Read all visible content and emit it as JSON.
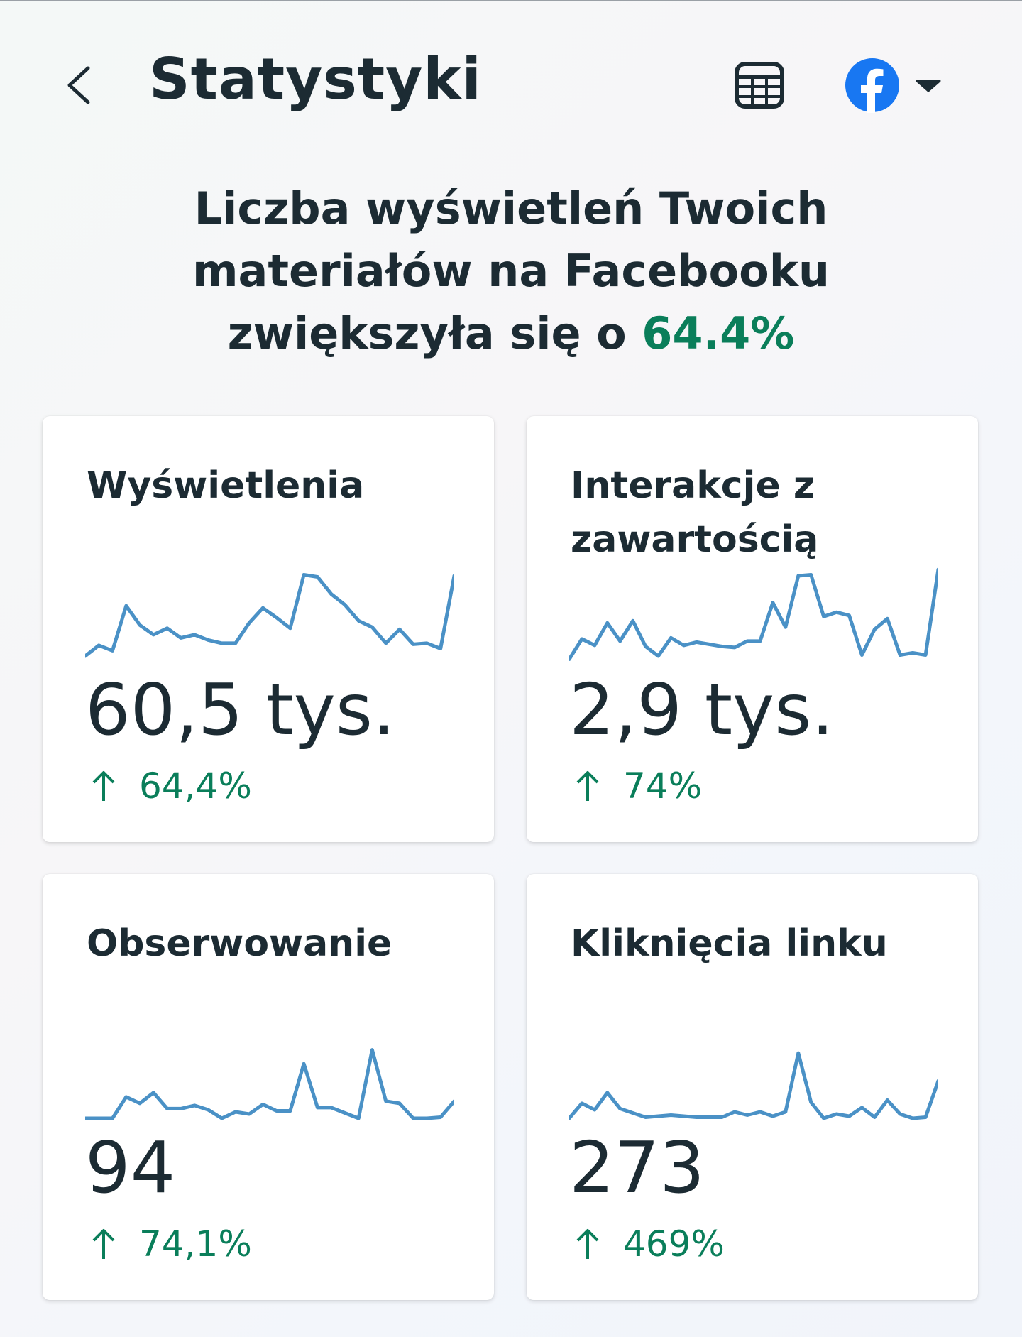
{
  "header": {
    "title": "Statystyki",
    "back_icon": "chevron-left-icon",
    "export_icon": "spreadsheet-icon",
    "platform_icon": "facebook-icon",
    "dropdown_icon": "caret-down-icon"
  },
  "headline": {
    "text": "Liczba wyświetleń Twoich materiałów na Facebooku zwiększyła się o ",
    "percent": "64.4%"
  },
  "colors": {
    "accent_green": "#0a7e5a",
    "sparkline_blue": "#4a91c6",
    "facebook_blue": "#1877f2",
    "text_dark": "#1c2b33"
  },
  "metrics": [
    {
      "label": "Wyświetlenia",
      "value": "60,5 tys.",
      "change": "64,4%",
      "trend": [
        8,
        28,
        18,
        102,
        66,
        48,
        60,
        42,
        48,
        38,
        32,
        32,
        70,
        98,
        80,
        60,
        160,
        156,
        124,
        104,
        74,
        62,
        32,
        58,
        30,
        32,
        22,
        158
      ]
    },
    {
      "label": "Interakcje z zawartością",
      "value": "2,9 tys.",
      "change": "74%",
      "trend": [
        2,
        40,
        28,
        70,
        36,
        74,
        26,
        8,
        42,
        28,
        34,
        30,
        26,
        24,
        36,
        36,
        108,
        62,
        158,
        160,
        82,
        90,
        84,
        10,
        58,
        78,
        10,
        14,
        10,
        170
      ]
    },
    {
      "label": "Obserwowanie",
      "value": "94",
      "change": "74,1%",
      "trend": [
        0,
        0,
        0,
        40,
        28,
        48,
        18,
        18,
        24,
        16,
        0,
        12,
        8,
        26,
        14,
        14,
        102,
        20,
        20,
        10,
        0,
        128,
        32,
        28,
        0,
        0,
        2,
        32
      ]
    },
    {
      "label": "Kliknięcia linku",
      "value": "273",
      "change": "469%",
      "trend": [
        0,
        28,
        16,
        48,
        18,
        10,
        2,
        4,
        6,
        4,
        2,
        2,
        2,
        12,
        6,
        12,
        4,
        12,
        122,
        30,
        0,
        8,
        4,
        20,
        2,
        34,
        8,
        0,
        2,
        70
      ]
    }
  ]
}
